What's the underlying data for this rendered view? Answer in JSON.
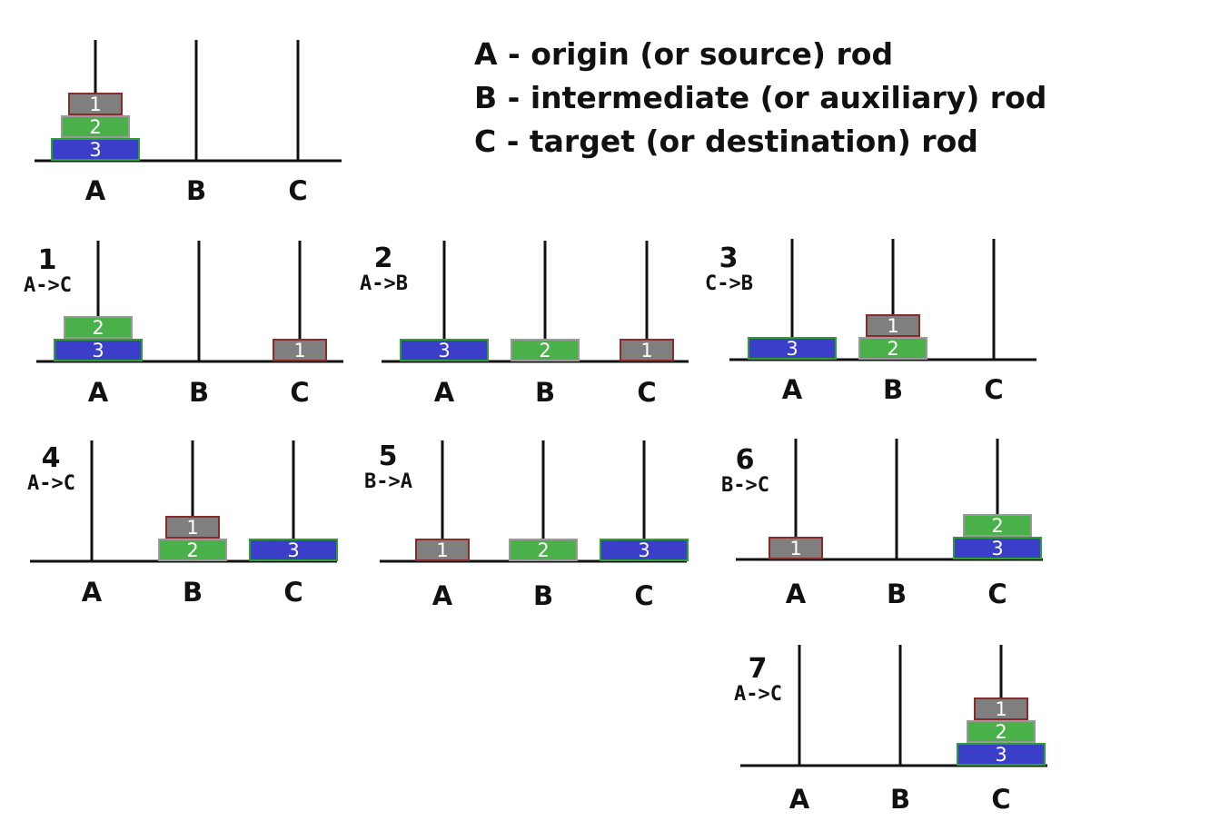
{
  "legend": [
    "A - origin (or source) rod",
    "B - intermediate (or auxiliary) rod",
    "C - target (or destination) rod"
  ],
  "rod_labels": [
    "A",
    "B",
    "C"
  ],
  "colors": {
    "disk1_fill": "#7f7f7f",
    "disk1_border": "#8b2a2a",
    "disk2_fill": "#4ab04a",
    "disk2_border": "#9a9a9a",
    "disk3_fill": "#3a3ec8",
    "disk3_border": "#2ea02e",
    "rod": "#111111",
    "base": "#111111"
  },
  "initial": {
    "rods": {
      "A": [
        3,
        2,
        1
      ],
      "B": [],
      "C": []
    }
  },
  "steps": [
    {
      "step": "1",
      "move": "A->C",
      "rods": {
        "A": [
          3,
          2
        ],
        "B": [],
        "C": [
          1
        ]
      }
    },
    {
      "step": "2",
      "move": "A->B",
      "rods": {
        "A": [
          3
        ],
        "B": [
          2
        ],
        "C": [
          1
        ]
      }
    },
    {
      "step": "3",
      "move": "C->B",
      "rods": {
        "A": [
          3
        ],
        "B": [
          2,
          1
        ],
        "C": []
      }
    },
    {
      "step": "4",
      "move": "A->C",
      "rods": {
        "A": [],
        "B": [
          2,
          1
        ],
        "C": [
          3
        ]
      }
    },
    {
      "step": "5",
      "move": "B->A",
      "rods": {
        "A": [
          1
        ],
        "B": [
          2
        ],
        "C": [
          3
        ]
      }
    },
    {
      "step": "6",
      "move": "B->C",
      "rods": {
        "A": [
          1
        ],
        "B": [],
        "C": [
          3,
          2
        ]
      }
    },
    {
      "step": "7",
      "move": "A->C",
      "rods": {
        "A": [],
        "B": [],
        "C": [
          3,
          2,
          1
        ]
      }
    }
  ]
}
